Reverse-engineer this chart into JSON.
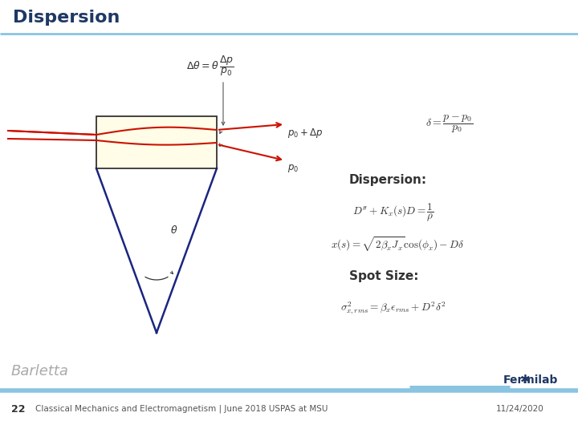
{
  "title": "Dispersion",
  "title_color": "#1F3864",
  "title_fontsize": 16,
  "background_color": "#ffffff",
  "slide_number": "22",
  "footer_text": "Classical Mechanics and Electromagnetism | June 2018 USPAS at MSU",
  "date_text": "11/24/2020",
  "author_text": "Barletta",
  "fermilab_color": "#1F3864",
  "header_line_color": "#89C4E1",
  "footer_line_color": "#89C4E1",
  "eq_delta": "$\\delta = \\dfrac{p - p_0}{p_0}$",
  "label_dispersion": "Dispersion:",
  "eq_dispersion1": "$D'' + K_x(s)D = \\dfrac{1}{\\rho}$",
  "eq_dispersion2": "$x(s) = \\sqrt{2\\beta_x J_x}\\cos(\\phi_x) - D\\delta$",
  "label_spotsize": "Spot Size:",
  "eq_spotsize": "$\\sigma^2_{x,rms} = \\beta_x \\epsilon_{rms} + D^2\\delta^2$",
  "eq_top": "$\\Delta\\theta = \\theta\\,\\dfrac{\\Delta p}{p_0}$",
  "label_p0dp": "$p_0 + \\Delta p$",
  "label_p0": "$p_0$",
  "label_theta": "$\\theta$",
  "blue_color": "#1a2580",
  "red_color": "#cc1100",
  "text_color": "#333333"
}
